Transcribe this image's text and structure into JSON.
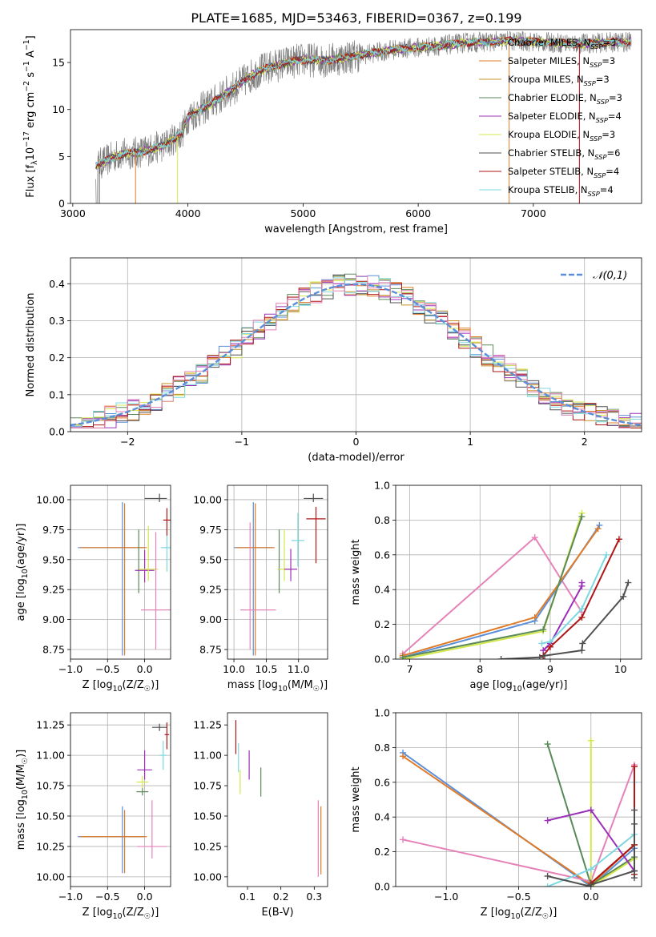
{
  "title": "PLATE=1685, MJD=53463, FIBERID=0367, z=0.199",
  "colors": {
    "chabrier_miles": "#5b8fd9",
    "salpeter_miles": "#e07b28",
    "kroupa_miles": "#c8902a",
    "chabrier_elodie": "#5a8a5a",
    "salpeter_elodie": "#9b30b8",
    "kroupa_elodie": "#d4e84a",
    "chabrier_stelib": "#505050",
    "salpeter_stelib": "#b01515",
    "kroupa_stelib": "#7dd8e0",
    "pink": "#e582b8",
    "data_grey": "#808080",
    "normal_curve": "#5b8fd9"
  },
  "chart_data": [
    {
      "id": "spectrum",
      "type": "line",
      "xlabel": "wavelength [Angstrom, rest frame]",
      "ylabel": "Flux [f_λ10^-17 erg cm^-2 s^-1 A^-1]",
      "xlim": [
        2980,
        7940
      ],
      "ylim": [
        0,
        18.5
      ],
      "xticks": [
        3000,
        4000,
        5000,
        6000,
        7000
      ],
      "yticks": [
        0,
        5,
        10,
        15
      ],
      "grid": false,
      "legend_position": "right",
      "continuum": [
        [
          3200,
          4.0
        ],
        [
          3400,
          5.2
        ],
        [
          3600,
          5.5
        ],
        [
          3800,
          6.2
        ],
        [
          3950,
          7.5
        ],
        [
          4000,
          9.2
        ],
        [
          4200,
          10.6
        ],
        [
          4400,
          12.3
        ],
        [
          4600,
          14.0
        ],
        [
          4800,
          14.8
        ],
        [
          5000,
          15.3
        ],
        [
          5200,
          15.2
        ],
        [
          5400,
          15.6
        ],
        [
          5600,
          16.0
        ],
        [
          5800,
          16.4
        ],
        [
          6000,
          16.6
        ],
        [
          6200,
          16.8
        ],
        [
          6400,
          17.1
        ],
        [
          6600,
          17.2
        ],
        [
          6800,
          17.3
        ],
        [
          7000,
          17.2
        ],
        [
          7200,
          17.1
        ],
        [
          7400,
          17.0
        ],
        [
          7800,
          17.2
        ]
      ],
      "series": [
        {
          "name": "Chabrier MILES, N_SSP=3",
          "color_key": "chabrier_miles"
        },
        {
          "name": "Salpeter MILES, N_SSP=3",
          "color_key": "salpeter_miles"
        },
        {
          "name": "Kroupa MILES, N_SSP=3",
          "color_key": "kroupa_miles"
        },
        {
          "name": "Chabrier ELODIE, N_SSP=3",
          "color_key": "chabrier_elodie"
        },
        {
          "name": "Salpeter ELODIE, N_SSP=4",
          "color_key": "salpeter_elodie"
        },
        {
          "name": "Kroupa ELODIE, N_SSP=3",
          "color_key": "kroupa_elodie"
        },
        {
          "name": "Chabrier STELIB, N_SSP=6",
          "color_key": "chabrier_stelib"
        },
        {
          "name": "Salpeter STELIB, N_SSP=4",
          "color_key": "salpeter_stelib"
        },
        {
          "name": "Kroupa STELIB, N_SSP=4",
          "color_key": "kroupa_stelib"
        }
      ]
    },
    {
      "id": "residuals",
      "type": "histogram",
      "xlabel": "(data-model)/error",
      "ylabel": "Normed distribution",
      "xlim": [
        -2.5,
        2.5
      ],
      "ylim": [
        0,
        0.47
      ],
      "xticks": [
        -2,
        -1,
        0,
        1,
        2
      ],
      "yticks": [
        0.0,
        0.1,
        0.2,
        0.3,
        0.4
      ],
      "grid": true,
      "legend": "𝒩(0,1)",
      "legend_position": "top-right",
      "bin_width": 0.1
    },
    {
      "id": "z_age",
      "type": "errorbar",
      "xlabel": "Z [log10(Z/Z☉)]",
      "ylabel": "age  [log10(age/yr)]",
      "xlim": [
        -1.0,
        0.35
      ],
      "ylim": [
        8.67,
        10.12
      ],
      "xticks": [
        -1.0,
        -0.5,
        0.0
      ],
      "yticks": [
        8.75,
        9.0,
        9.25,
        9.5,
        9.75,
        10.0
      ],
      "grid": true,
      "points": [
        {
          "c": "chabrier_miles",
          "x": -0.3,
          "xl": 0.6,
          "xh": 0.3,
          "y": 9.6,
          "yl": 0.9,
          "yh": 0.38
        },
        {
          "c": "salpeter_miles",
          "x": -0.27,
          "xl": 0.6,
          "xh": 0.3,
          "y": 9.6,
          "yl": 0.9,
          "yh": 0.37
        },
        {
          "c": "chabrier_elodie",
          "x": -0.08,
          "xl": 0.01,
          "xh": 0.01,
          "y": 9.42,
          "yl": 0.2,
          "yh": 0.33
        },
        {
          "c": "salpeter_elodie",
          "x": 0.0,
          "xl": 0.13,
          "xh": 0.13,
          "y": 9.41,
          "yl": 0.1,
          "yh": 0.17
        },
        {
          "c": "kroupa_elodie",
          "x": 0.05,
          "xl": 0.13,
          "xh": 0.13,
          "y": 9.42,
          "yl": 0.1,
          "yh": 0.36
        },
        {
          "c": "pink",
          "x": 0.15,
          "xl": 0.2,
          "xh": 0.2,
          "y": 9.08,
          "yl": 0.33,
          "yh": 0.65
        },
        {
          "c": "kroupa_stelib",
          "x": 0.3,
          "xl": 0.08,
          "xh": 0.08,
          "y": 9.6,
          "yl": 0.2,
          "yh": 0.1
        },
        {
          "c": "chabrier_stelib",
          "x": 0.2,
          "xl": 0.2,
          "xh": 0.1,
          "y": 10.01,
          "yl": 0.03,
          "yh": 0.04
        },
        {
          "c": "salpeter_stelib",
          "x": 0.3,
          "xl": 0.05,
          "xh": 0.05,
          "y": 9.83,
          "yl": 0.13,
          "yh": 0.1
        }
      ]
    },
    {
      "id": "mass_age",
      "type": "errorbar",
      "xlabel": "mass [log10(M/M☉)]",
      "ylabel": "",
      "xlim": [
        9.9,
        11.45
      ],
      "ylim": [
        8.67,
        10.12
      ],
      "xticks": [
        10.0,
        10.5,
        11.0
      ],
      "yticks": [
        8.75,
        9.0,
        9.25,
        9.5,
        9.75,
        10.0
      ],
      "grid": true,
      "points": [
        {
          "c": "chabrier_miles",
          "x": 10.3,
          "xl": 0.3,
          "xh": 0.3,
          "y": 9.6,
          "yl": 0.9,
          "yh": 0.38
        },
        {
          "c": "salpeter_miles",
          "x": 10.33,
          "xl": 0.3,
          "xh": 0.3,
          "y": 9.6,
          "yl": 0.9,
          "yh": 0.37
        },
        {
          "c": "pink",
          "x": 10.25,
          "xl": 0.15,
          "xh": 0.4,
          "y": 9.08,
          "yl": 0.33,
          "yh": 0.73
        },
        {
          "c": "chabrier_elodie",
          "x": 10.7,
          "xl": 0.02,
          "xh": 0.02,
          "y": 9.42,
          "yl": 0.2,
          "yh": 0.33
        },
        {
          "c": "kroupa_elodie",
          "x": 10.78,
          "xl": 0.1,
          "xh": 0.1,
          "y": 9.42,
          "yl": 0.1,
          "yh": 0.33
        },
        {
          "c": "salpeter_elodie",
          "x": 10.88,
          "xl": 0.1,
          "xh": 0.1,
          "y": 9.42,
          "yl": 0.1,
          "yh": 0.17
        },
        {
          "c": "kroupa_stelib",
          "x": 10.99,
          "xl": 0.1,
          "xh": 0.1,
          "y": 9.66,
          "yl": 0.22,
          "yh": 0.23
        },
        {
          "c": "chabrier_stelib",
          "x": 11.23,
          "xl": 0.15,
          "xh": 0.15,
          "y": 10.01,
          "yl": 0.03,
          "yh": 0.04
        },
        {
          "c": "salpeter_stelib",
          "x": 11.27,
          "xl": 0.15,
          "xh": 0.15,
          "y": 9.84,
          "yl": 0.37,
          "yh": 0.1
        }
      ]
    },
    {
      "id": "weights_age",
      "type": "line",
      "xlabel": "age  [log10(age/yr)]",
      "ylabel": "mass weight",
      "xlim": [
        6.8,
        10.3
      ],
      "ylim": [
        0,
        1.0
      ],
      "xticks": [
        7,
        8,
        9,
        10
      ],
      "yticks": [
        0.0,
        0.2,
        0.4,
        0.6,
        0.8,
        1.0
      ],
      "grid": true,
      "series": [
        {
          "c": "pink",
          "x": [
            6.9,
            8.78,
            9.45
          ],
          "y": [
            0.03,
            0.7,
            0.27
          ]
        },
        {
          "c": "chabrier_miles",
          "x": [
            6.9,
            8.78,
            9.7
          ],
          "y": [
            0.01,
            0.22,
            0.77
          ]
        },
        {
          "c": "salpeter_miles",
          "x": [
            6.9,
            8.78,
            9.68
          ],
          "y": [
            0.02,
            0.24,
            0.75
          ]
        },
        {
          "c": "kroupa_elodie",
          "x": [
            6.9,
            8.9,
            9.45
          ],
          "y": [
            0.0,
            0.16,
            0.84
          ]
        },
        {
          "c": "chabrier_elodie",
          "x": [
            6.9,
            8.9,
            9.45
          ],
          "y": [
            0.01,
            0.17,
            0.82
          ]
        },
        {
          "c": "salpeter_elodie",
          "x": [
            8.9,
            9.0,
            9.45,
            9.45
          ],
          "y": [
            0.05,
            0.09,
            0.42,
            0.44
          ]
        },
        {
          "c": "kroupa_stelib",
          "x": [
            8.88,
            9.0,
            9.45,
            9.8
          ],
          "y": [
            0.09,
            0.1,
            0.29,
            0.6
          ]
        },
        {
          "c": "salpeter_stelib",
          "x": [
            8.9,
            9.0,
            9.45,
            9.98
          ],
          "y": [
            0.02,
            0.07,
            0.24,
            0.69
          ]
        },
        {
          "c": "chabrier_stelib",
          "x": [
            8.3,
            8.85,
            8.92,
            9.45,
            9.46,
            10.04,
            10.11
          ],
          "y": [
            0.0,
            0.01,
            0.02,
            0.05,
            0.09,
            0.36,
            0.44
          ]
        }
      ]
    },
    {
      "id": "z_mass",
      "type": "errorbar",
      "xlabel": "Z [log10(Z/Z☉)]",
      "ylabel": "mass [log10(M/M☉)]",
      "xlim": [
        -1.0,
        0.35
      ],
      "ylim": [
        9.92,
        11.35
      ],
      "xticks": [
        -1.0,
        -0.5,
        0.0
      ],
      "yticks": [
        10.0,
        10.25,
        10.5,
        10.75,
        11.0,
        11.25
      ],
      "grid": true,
      "points": [
        {
          "c": "chabrier_miles",
          "x": -0.3,
          "xl": 0.6,
          "xh": 0.3,
          "y": 10.33,
          "yl": 0.3,
          "yh": 0.25
        },
        {
          "c": "salpeter_miles",
          "x": -0.27,
          "xl": 0.6,
          "xh": 0.3,
          "y": 10.33,
          "yl": 0.3,
          "yh": 0.22
        },
        {
          "c": "pink",
          "x": 0.1,
          "xl": 0.2,
          "xh": 0.2,
          "y": 10.25,
          "yl": 0.1,
          "yh": 0.38
        },
        {
          "c": "chabrier_elodie",
          "x": -0.03,
          "xl": 0.08,
          "xh": 0.08,
          "y": 10.7,
          "yl": 0.03,
          "yh": 0.03
        },
        {
          "c": "kroupa_elodie",
          "x": -0.03,
          "xl": 0.08,
          "xh": 0.08,
          "y": 10.78,
          "yl": 0.05,
          "yh": 0.05
        },
        {
          "c": "salpeter_elodie",
          "x": 0.0,
          "xl": 0.1,
          "xh": 0.1,
          "y": 10.88,
          "yl": 0.08,
          "yh": 0.16
        },
        {
          "c": "kroupa_stelib",
          "x": 0.25,
          "xl": 0.05,
          "xh": 0.05,
          "y": 11.0,
          "yl": 0.12,
          "yh": 0.12
        },
        {
          "c": "chabrier_stelib",
          "x": 0.2,
          "xl": 0.1,
          "xh": 0.1,
          "y": 11.23,
          "yl": 0.03,
          "yh": 0.03
        },
        {
          "c": "salpeter_stelib",
          "x": 0.3,
          "xl": 0.03,
          "xh": 0.03,
          "y": 11.17,
          "yl": 0.12,
          "yh": 0.1
        }
      ]
    },
    {
      "id": "ebv_mass",
      "type": "errorbar",
      "xlabel": "E(B-V)",
      "ylabel": "",
      "xlim": [
        0.04,
        0.34
      ],
      "ylim": [
        9.92,
        11.35
      ],
      "xticks": [
        0.1,
        0.2,
        0.3
      ],
      "yticks": [
        10.0,
        10.25,
        10.5,
        10.75,
        11.0,
        11.25
      ],
      "grid": false,
      "points": [
        {
          "c": "salpeter_stelib",
          "x": 0.065,
          "xl": 0,
          "xh": 0,
          "y": 11.15,
          "yl": 0.14,
          "yh": 0.14
        },
        {
          "c": "kroupa_stelib",
          "x": 0.073,
          "xl": 0,
          "xh": 0,
          "y": 10.98,
          "yl": 0.12,
          "yh": 0.12
        },
        {
          "c": "kroupa_elodie",
          "x": 0.078,
          "xl": 0,
          "xh": 0,
          "y": 10.78,
          "yl": 0.1,
          "yh": 0.1
        },
        {
          "c": "salpeter_elodie",
          "x": 0.105,
          "xl": 0,
          "xh": 0,
          "y": 10.92,
          "yl": 0.12,
          "yh": 0.12
        },
        {
          "c": "chabrier_elodie",
          "x": 0.14,
          "xl": 0,
          "xh": 0,
          "y": 10.78,
          "yl": 0.12,
          "yh": 0.12
        },
        {
          "c": "pink",
          "x": 0.312,
          "xl": 0,
          "xh": 0,
          "y": 10.3,
          "yl": 0.3,
          "yh": 0.33
        },
        {
          "c": "salpeter_miles",
          "x": 0.32,
          "xl": 0,
          "xh": 0,
          "y": 10.3,
          "yl": 0.28,
          "yh": 0.28
        }
      ]
    },
    {
      "id": "weights_z",
      "type": "line",
      "xlabel": "Z [log10(Z/Z☉)]",
      "ylabel": "mass weight",
      "xlim": [
        -1.35,
        0.35
      ],
      "ylim": [
        0,
        1.0
      ],
      "xticks": [
        -1.0,
        -0.5,
        0.0
      ],
      "yticks": [
        0.0,
        0.2,
        0.4,
        0.6,
        0.8,
        1.0
      ],
      "grid": true,
      "series": [
        {
          "c": "chabrier_miles",
          "x": [
            -1.3,
            0.0,
            0.3
          ],
          "y": [
            0.77,
            0.0,
            0.22
          ]
        },
        {
          "c": "salpeter_miles",
          "x": [
            -1.3,
            0.0,
            0.3
          ],
          "y": [
            0.75,
            0.01,
            0.24
          ]
        },
        {
          "c": "pink",
          "x": [
            -1.3,
            0.0,
            0.3
          ],
          "y": [
            0.27,
            0.03,
            0.7
          ]
        },
        {
          "c": "chabrier_elodie",
          "x": [
            -0.3,
            0.0,
            0.3
          ],
          "y": [
            0.82,
            0.01,
            0.17
          ]
        },
        {
          "c": "kroupa_elodie",
          "x": [
            0.0,
            0.0,
            0.3
          ],
          "y": [
            0.84,
            0.0,
            0.16
          ]
        },
        {
          "c": "salpeter_elodie",
          "x": [
            -0.3,
            0.0,
            0.3,
            0.3
          ],
          "y": [
            0.38,
            0.44,
            0.09,
            0.09
          ]
        },
        {
          "c": "kroupa_stelib",
          "x": [
            -0.3,
            0.0,
            0.3,
            0.3
          ],
          "y": [
            0.0,
            0.1,
            0.3,
            0.6
          ]
        },
        {
          "c": "salpeter_stelib",
          "x": [
            0.0,
            0.3,
            0.3,
            0.3
          ],
          "y": [
            0.02,
            0.24,
            0.69,
            0.07
          ]
        },
        {
          "c": "chabrier_stelib",
          "x": [
            -0.3,
            0.0,
            0.0,
            0.3,
            0.3,
            0.3,
            0.3
          ],
          "y": [
            0.06,
            0.0,
            0.01,
            0.09,
            0.36,
            0.44,
            0.05
          ]
        }
      ]
    }
  ]
}
